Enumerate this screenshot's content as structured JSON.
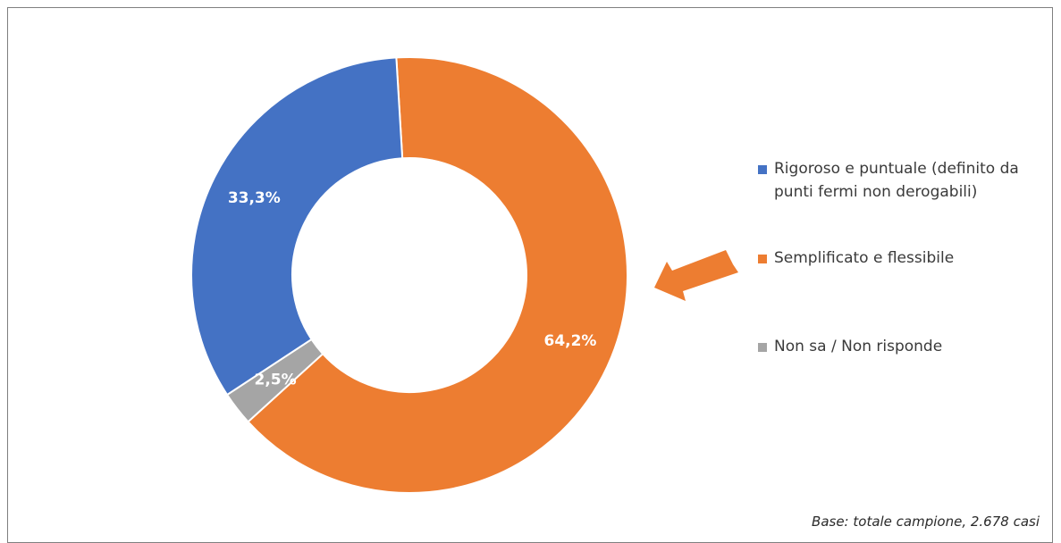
{
  "chart_data": {
    "type": "pie",
    "variant": "donut",
    "title": "",
    "categories": [
      "Rigoroso e puntuale (definito da punti fermi non derogabili)",
      "Semplificato e flessibile",
      "Non sa / Non risponde"
    ],
    "values": [
      33.3,
      64.2,
      2.5
    ],
    "data_labels": [
      "33,3%",
      "64,2%",
      "2,5%"
    ],
    "colors": [
      "#4472C4",
      "#ED7D31",
      "#A5A5A5"
    ],
    "legend_position": "right",
    "highlighted_category": "Semplificato e flessibile",
    "highlight_marker": "orange-arrow"
  },
  "legend": {
    "items": [
      {
        "label_line1": "Rigoroso e puntuale (definito da",
        "label_line2": "punti fermi non derogabili)",
        "color": "#4472C4"
      },
      {
        "label_line1": "Semplificato e flessibile",
        "label_line2": "",
        "color": "#ED7D31"
      },
      {
        "label_line1": "Non sa / Non risponde",
        "label_line2": "",
        "color": "#A5A5A5"
      }
    ]
  },
  "note": "Base: totale campione, 2.678 casi",
  "arrow_color": "#ED7D31"
}
